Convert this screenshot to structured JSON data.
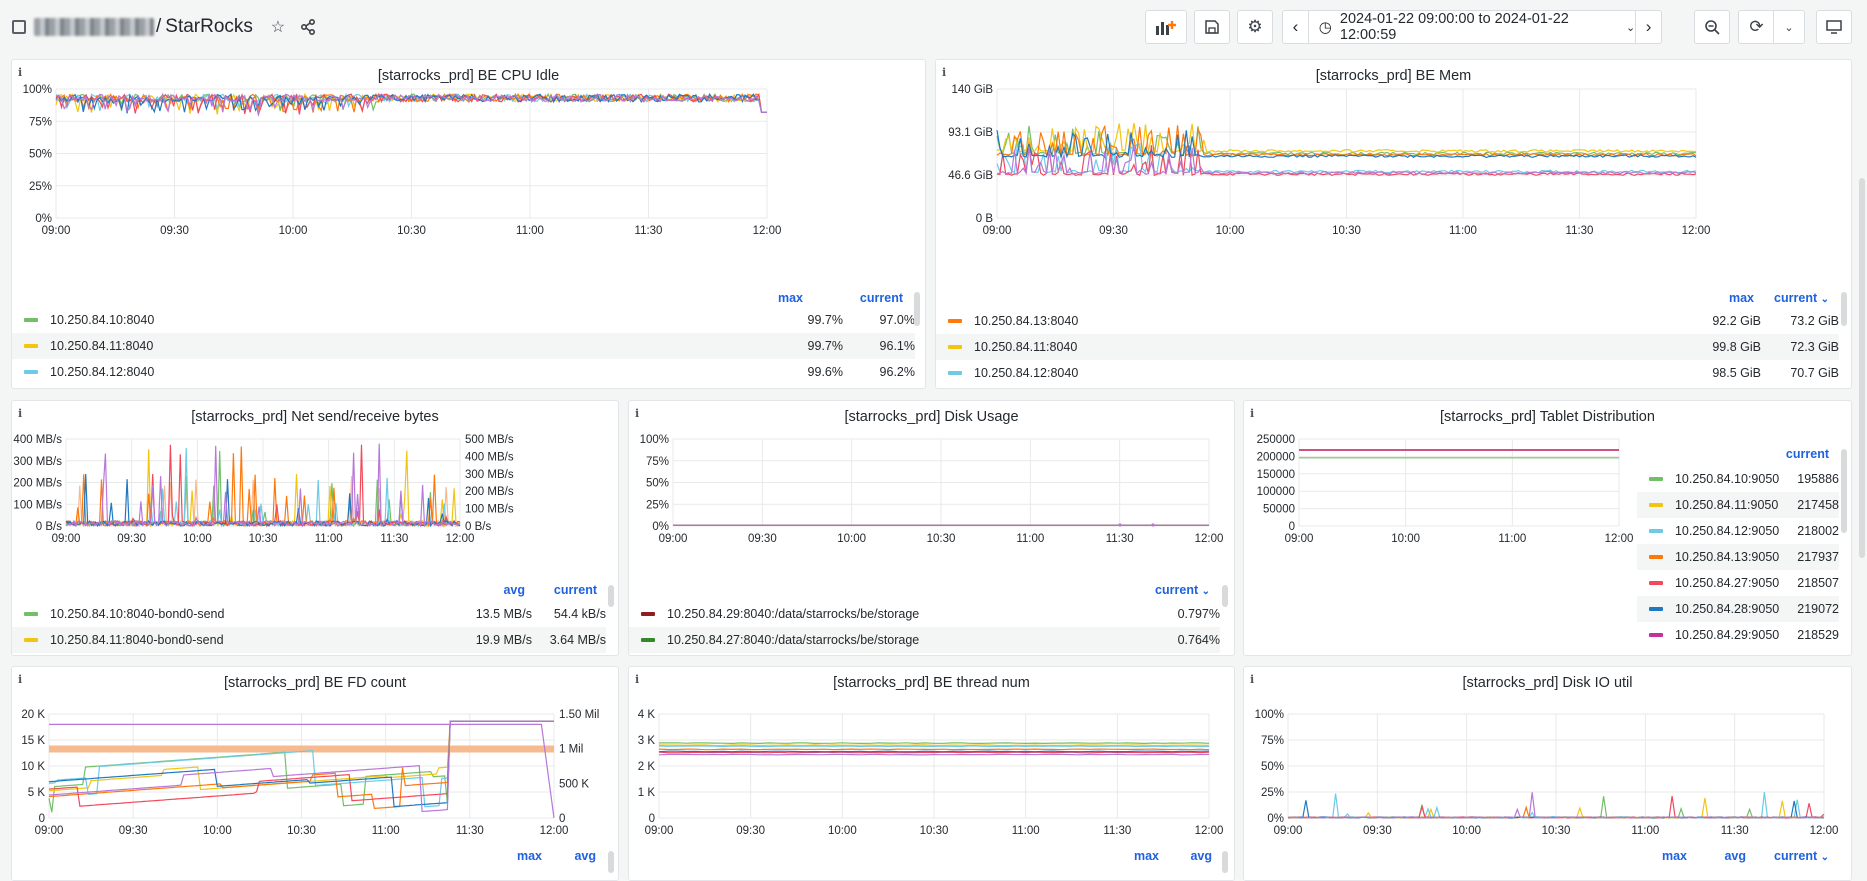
{
  "header": {
    "breadcrumb_sep": "/",
    "dashboard_title": "StarRocks",
    "time_range": "2024-01-22 09:00:00 to 2024-01-22 12:00:59"
  },
  "colors": {
    "green": "#73bf69",
    "yellow": "#f2c511",
    "cyan": "#6ccbe6",
    "orange": "#ff780a",
    "red": "#f2495c",
    "blue": "#1f78c1",
    "purple": "#b877d9",
    "darkred": "#8f1e1e",
    "darkgreen": "#37872d",
    "magenta": "#c4309c",
    "salmon": "#f7b98e"
  },
  "panels": {
    "cpu_idle": {
      "title": "[starrocks_prd] BE CPU Idle",
      "y_ticks": [
        "100%",
        "75%",
        "50%",
        "25%",
        "0%"
      ],
      "x_ticks": [
        "09:00",
        "09:30",
        "10:00",
        "10:30",
        "11:00",
        "11:30",
        "12:00"
      ],
      "legend_headers": [
        "max",
        "current"
      ],
      "rows": [
        {
          "name": "10.250.84.10:8040",
          "v1": "99.7%",
          "v2": "97.0%",
          "color": "#73bf69"
        },
        {
          "name": "10.250.84.11:8040",
          "v1": "99.7%",
          "v2": "96.1%",
          "color": "#f2c511"
        },
        {
          "name": "10.250.84.12:8040",
          "v1": "99.6%",
          "v2": "96.2%",
          "color": "#6ccbe6"
        }
      ]
    },
    "be_mem": {
      "title": "[starrocks_prd] BE Mem",
      "y_ticks": [
        "140 GiB",
        "93.1 GiB",
        "46.6 GiB",
        "0 B"
      ],
      "x_ticks": [
        "09:00",
        "09:30",
        "10:00",
        "10:30",
        "11:00",
        "11:30",
        "12:00"
      ],
      "legend_headers": [
        "max",
        "current"
      ],
      "rows": [
        {
          "name": "10.250.84.13:8040",
          "v1": "92.2 GiB",
          "v2": "73.2 GiB",
          "color": "#ff780a"
        },
        {
          "name": "10.250.84.11:8040",
          "v1": "99.8 GiB",
          "v2": "72.3 GiB",
          "color": "#f2c511"
        },
        {
          "name": "10.250.84.12:8040",
          "v1": "98.5 GiB",
          "v2": "70.7 GiB",
          "color": "#6ccbe6"
        }
      ]
    },
    "net": {
      "title": "[starrocks_prd] Net send/receive bytes",
      "y_ticks": [
        "400 MB/s",
        "300 MB/s",
        "200 MB/s",
        "100 MB/s",
        "0 B/s"
      ],
      "y2_ticks": [
        "500 MB/s",
        "400 MB/s",
        "300 MB/s",
        "200 MB/s",
        "100 MB/s",
        "0 B/s"
      ],
      "x_ticks": [
        "09:00",
        "09:30",
        "10:00",
        "10:30",
        "11:00",
        "11:30",
        "12:00"
      ],
      "legend_headers": [
        "avg",
        "current"
      ],
      "rows": [
        {
          "name": "10.250.84.10:8040-bond0-send",
          "v1": "13.5 MB/s",
          "v2": "54.4 kB/s",
          "color": "#73bf69"
        },
        {
          "name": "10.250.84.11:8040-bond0-send",
          "v1": "19.9 MB/s",
          "v2": "3.64 MB/s",
          "color": "#f2c511"
        }
      ]
    },
    "disk": {
      "title": "[starrocks_prd] Disk Usage",
      "y_ticks": [
        "100%",
        "75%",
        "50%",
        "25%",
        "0%"
      ],
      "x_ticks": [
        "09:00",
        "09:30",
        "10:00",
        "10:30",
        "11:00",
        "11:30",
        "12:00"
      ],
      "legend_headers": [
        "current"
      ],
      "rows": [
        {
          "name": "10.250.84.29:8040:/data/starrocks/be/storage",
          "v2": "0.797%",
          "color": "#8f1e1e"
        },
        {
          "name": "10.250.84.27:8040:/data/starrocks/be/storage",
          "v2": "0.764%",
          "color": "#37872d"
        }
      ]
    },
    "tablet": {
      "title": "[starrocks_prd] Tablet Distribution",
      "y_ticks": [
        "250000",
        "200000",
        "150000",
        "100000",
        "50000",
        "0"
      ],
      "x_ticks": [
        "09:00",
        "10:00",
        "11:00",
        "12:00"
      ],
      "legend_headers": [
        "current"
      ],
      "rows": [
        {
          "name": "10.250.84.10:9050",
          "v2": "195886",
          "color": "#73bf69"
        },
        {
          "name": "10.250.84.11:9050",
          "v2": "217458",
          "color": "#f2c511"
        },
        {
          "name": "10.250.84.12:9050",
          "v2": "218002",
          "color": "#6ccbe6"
        },
        {
          "name": "10.250.84.13:9050",
          "v2": "217937",
          "color": "#ff780a"
        },
        {
          "name": "10.250.84.27:9050",
          "v2": "218507",
          "color": "#f2495c"
        },
        {
          "name": "10.250.84.28:9050",
          "v2": "219072",
          "color": "#1f78c1"
        },
        {
          "name": "10.250.84.29:9050",
          "v2": "218529",
          "color": "#c4309c"
        }
      ]
    },
    "fd": {
      "title": "[starrocks_prd] BE FD count",
      "y_ticks": [
        "20 K",
        "15 K",
        "10 K",
        "5 K",
        "0"
      ],
      "y2_ticks": [
        "1.50 Mil",
        "1 Mil",
        "500 K",
        "0"
      ],
      "x_ticks": [
        "09:00",
        "09:30",
        "10:00",
        "10:30",
        "11:00",
        "11:30",
        "12:00"
      ],
      "legend_headers": [
        "max",
        "avg"
      ]
    },
    "thread": {
      "title": "[starrocks_prd] BE thread num",
      "y_ticks": [
        "4 K",
        "3 K",
        "2 K",
        "1 K",
        "0"
      ],
      "x_ticks": [
        "09:00",
        "09:30",
        "10:00",
        "10:30",
        "11:00",
        "11:30",
        "12:00"
      ],
      "legend_headers": [
        "max",
        "avg"
      ]
    },
    "diskio": {
      "title": "[starrocks_prd] Disk IO util",
      "y_ticks": [
        "100%",
        "75%",
        "50%",
        "25%",
        "0%"
      ],
      "x_ticks": [
        "09:00",
        "09:30",
        "10:00",
        "10:30",
        "11:00",
        "11:30",
        "12:00"
      ],
      "legend_headers": [
        "max",
        "avg",
        "current"
      ]
    }
  }
}
